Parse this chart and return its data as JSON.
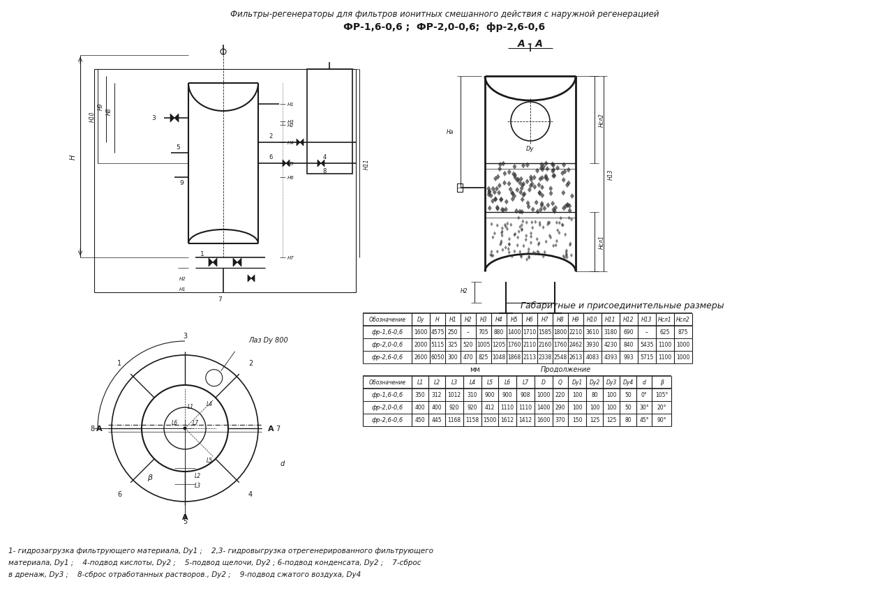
{
  "title_line1": "Фильтры-регенераторы для фильтров ионитных смешанного действия с наружной регенерацией",
  "title_line2": "ФР-1,6-0,6 ;  ФР-2,0-0,6;  фр-2,6-0,6",
  "section_label": "А - А",
  "table_title": "Габаритные и присоединительные размеры",
  "table1_headers": [
    "Обозначение",
    "Dy",
    "H",
    "H1",
    "H2",
    "H3",
    "H4",
    "H5",
    "H6",
    "H7",
    "H8",
    "H9",
    "H10",
    "H11",
    "H12",
    "H13",
    "Нсл1",
    "Нсл2"
  ],
  "table1_rows": [
    [
      "фр-1,6-0,6",
      "1600",
      "4575",
      "250",
      "–",
      "705",
      "880",
      "1400",
      "1710",
      "1585",
      "1800",
      "2210",
      "3610",
      "3180",
      "690",
      "–",
      "625",
      "875"
    ],
    [
      "фр-2,0-0,6",
      "2000",
      "5115",
      "325",
      "520",
      "1005",
      "1205",
      "1760",
      "2110",
      "2160",
      "1760",
      "2462",
      "3930",
      "4230",
      "840",
      "5435",
      "1100",
      "1000"
    ],
    [
      "фр-2,6-0,6",
      "2600",
      "6050",
      "300",
      "470",
      "825",
      "1048",
      "1868",
      "2113",
      "2338",
      "2548",
      "2613",
      "4083",
      "4393",
      "993",
      "5715",
      "1100",
      "1000"
    ]
  ],
  "table2_note_left": "мм",
  "table2_note_right": "Продолжение",
  "table2_headers": [
    "Обозначение",
    "L1",
    "L2",
    "L3",
    "L4",
    "L5",
    "L6",
    "L7",
    "D",
    "Q",
    "Dy1",
    "Dy2",
    "Dy3",
    "Dy4",
    "d",
    "β"
  ],
  "table2_rows": [
    [
      "фр-1,6-0,6",
      "350",
      "312",
      "1012",
      "310",
      "900",
      "900",
      "908",
      "1000",
      "220",
      "100",
      "80",
      "100",
      "50",
      "0°",
      "105°"
    ],
    [
      "фр-2,0-0,6",
      "400",
      "400",
      "920",
      "920",
      "412",
      "1110",
      "1110",
      "1400",
      "290",
      "100",
      "100",
      "100",
      "50",
      "30°",
      "20°"
    ],
    [
      "фр-2,6-0,6",
      "450",
      "445",
      "1168",
      "1158",
      "1500",
      "1612",
      "1412",
      "1600",
      "370",
      "150",
      "125",
      "125",
      "80",
      "45°",
      "90°"
    ]
  ],
  "footnote_lines": [
    "1- гидрозагрузка фильтрующего материала, Dy1 ;    2,3- гидровыгрузка отрегенерированного фильтрующего",
    "материала, Dy1 ;    4-подвод кислоты, Dy2 ;    5-подвод щелочи, Dy2 ; 6-подвод конденсата, Dy2 ;    7-сброс",
    "в дренаж, Dy3 ;    8-сброс отработанных растворов., Dy2 ;    9-подвод сжатого воздуха, Dy4"
  ],
  "laz_label": "Лаз Dy 800",
  "bg_color": "#ffffff",
  "line_color": "#1a1a1a",
  "text_color": "#1a1a1a"
}
